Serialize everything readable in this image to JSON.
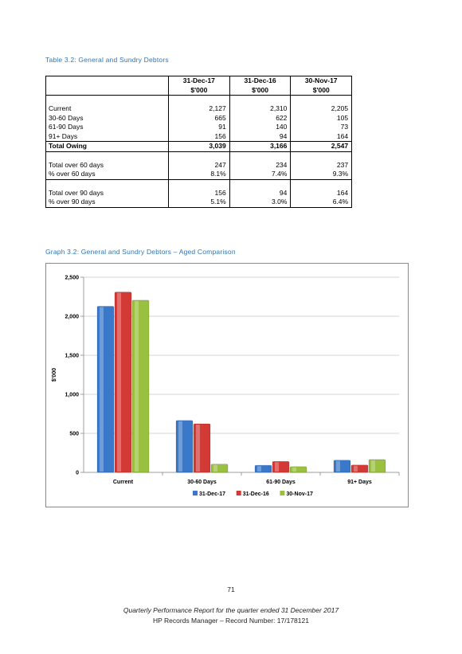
{
  "table": {
    "caption": "Table 3.2: General and Sundry Debtors",
    "headers": [
      "31-Dec-17",
      "31-Dec-16",
      "30-Nov-17"
    ],
    "units": [
      "$'000",
      "$'000",
      "$'000"
    ],
    "rows": [
      {
        "label": "Current",
        "values": [
          "2,127",
          "2,310",
          "2,205"
        ]
      },
      {
        "label": "30-60 Days",
        "values": [
          "665",
          "622",
          "105"
        ]
      },
      {
        "label": "61-90 Days",
        "values": [
          "91",
          "140",
          "73"
        ]
      },
      {
        "label": "91+ Days",
        "values": [
          "156",
          "94",
          "164"
        ]
      },
      {
        "label": "Total Owing",
        "values": [
          "3,039",
          "3,166",
          "2,547"
        ]
      },
      {
        "label": "Total over 60 days",
        "values": [
          "247",
          "234",
          "237"
        ]
      },
      {
        "label": "% over 60 days",
        "values": [
          "8.1%",
          "7.4%",
          "9.3%"
        ]
      },
      {
        "label": "Total over 90 days",
        "values": [
          "156",
          "94",
          "164"
        ]
      },
      {
        "label": "% over 90 days",
        "values": [
          "5.1%",
          "3.0%",
          "6.4%"
        ]
      }
    ]
  },
  "graph": {
    "caption": "Graph 3.2: General and Sundry Debtors – Aged Comparison"
  },
  "chart_data": {
    "type": "bar",
    "title": "",
    "xlabel": "",
    "ylabel": "$'000",
    "ylim": [
      0,
      2500
    ],
    "yticks": [
      0,
      500,
      1000,
      1500,
      2000,
      2500
    ],
    "ytick_labels": [
      "0",
      "500",
      "1,000",
      "1,500",
      "2,000",
      "2,500"
    ],
    "grid": true,
    "legend_position": "bottom",
    "categories": [
      "Current",
      "30-60 Days",
      "61-90 Days",
      "91+ Days"
    ],
    "series": [
      {
        "name": "31-Dec-17",
        "color": "#3a78c9",
        "values": [
          2127,
          665,
          91,
          156
        ]
      },
      {
        "name": "31-Dec-16",
        "color": "#d43a35",
        "values": [
          2310,
          622,
          140,
          94
        ]
      },
      {
        "name": "30-Nov-17",
        "color": "#99c03f",
        "values": [
          2205,
          105,
          73,
          164
        ]
      }
    ]
  },
  "footer": {
    "page_number": "71",
    "line1": "Quarterly Performance Report for the quarter ended 31 December 2017",
    "line2": "HP Records Manager – Record Number: 17/178121"
  }
}
